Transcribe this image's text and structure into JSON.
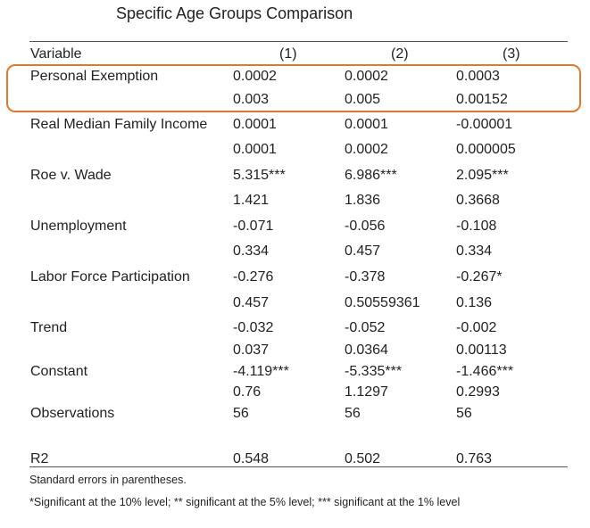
{
  "title": "Specific Age Groups Comparison",
  "header": {
    "variable": "Variable",
    "col1": "(1)",
    "col2": "(2)",
    "col3": "(3)"
  },
  "rows": [
    {
      "label": "Personal Exemption",
      "c1": "0.0002",
      "c2": "0.0002",
      "c3": "0.0003",
      "highlighted": true
    },
    {
      "label": "",
      "c1": "0.003",
      "c2": "0.005",
      "c3": "0.00152"
    },
    {
      "label": "Real Median Family Income",
      "c1": "0.0001",
      "c2": "0.0001",
      "c3": "-0.00001"
    },
    {
      "label": "",
      "c1": "0.0001",
      "c2": "0.0002",
      "c3": "0.000005"
    },
    {
      "label": "Roe v. Wade",
      "c1": "5.315***",
      "c2": "6.986***",
      "c3": "2.095***"
    },
    {
      "label": "",
      "c1": "1.421",
      "c2": "1.836",
      "c3": "0.3668"
    },
    {
      "label": "Unemployment",
      "c1": "-0.071",
      "c2": "-0.056",
      "c3": "-0.108"
    },
    {
      "label": "",
      "c1": "0.334",
      "c2": "0.457",
      "c3": "0.334"
    },
    {
      "label": "Labor Force Participation",
      "c1": "-0.276",
      "c2": "-0.378",
      "c3": "-0.267*"
    },
    {
      "label": "",
      "c1": "0.457",
      "c2": "0.50559361",
      "c3": "0.136"
    },
    {
      "label": "Trend",
      "c1": "-0.032",
      "c2": "-0.052",
      "c3": "-0.002"
    },
    {
      "label": "",
      "c1": "0.037",
      "c2": "0.0364",
      "c3": "0.00113"
    },
    {
      "label": "Constant",
      "c1": "-4.119***",
      "c2": "-5.335***",
      "c3": "-1.466***"
    },
    {
      "label": "",
      "c1": "0.76",
      "c2": "1.1297",
      "c3": "0.2993"
    },
    {
      "label": "Observations",
      "c1": "56",
      "c2": "56",
      "c3": "56"
    },
    {
      "label": "R2",
      "c1": "0.548",
      "c2": "0.502",
      "c3": "0.763"
    }
  ],
  "notes": {
    "standard_errors": "Standard errors in parentheses.",
    "significance": "*Significant at the 10% level; ** significant at the 5% level; *** significant at the 1% level"
  },
  "colors": {
    "highlight_border": "#e07a2a"
  }
}
